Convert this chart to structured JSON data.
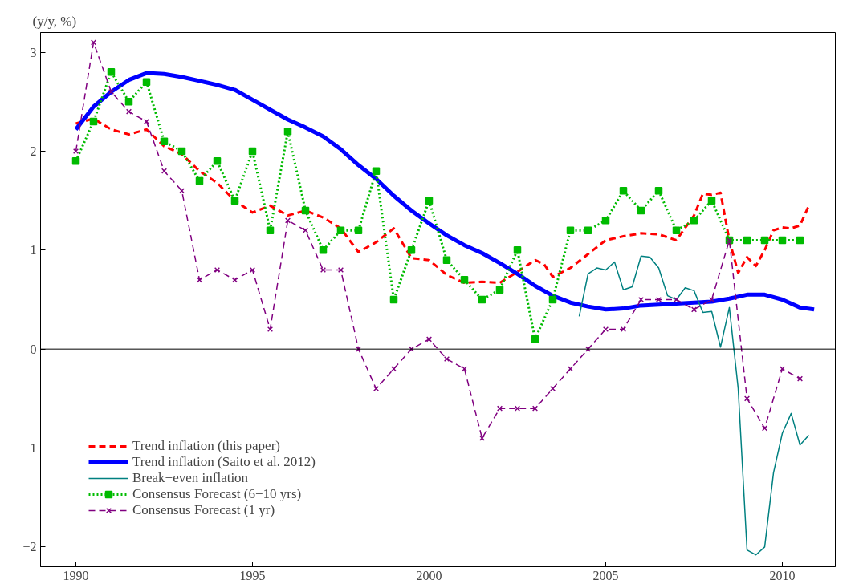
{
  "chart_data": {
    "type": "line",
    "ylabel": "(y/y, %)",
    "xlim": [
      1989,
      2011.5
    ],
    "ylim": [
      -2.2,
      3.2
    ],
    "xticks": [
      1990,
      1995,
      2000,
      2005,
      2010
    ],
    "yticks": [
      -2,
      -1,
      0,
      1,
      2,
      3
    ],
    "grid": false,
    "legend": "bottom left",
    "ref_lines": [
      {
        "axis": "y",
        "value": 0,
        "color": "#000000"
      }
    ],
    "series": [
      {
        "name": "Trend inflation (this paper)",
        "color": "#ff0000",
        "line_style": "dashed",
        "marker": "none",
        "x": [
          1990,
          1990.5,
          1991,
          1991.5,
          1992,
          1992.5,
          1993,
          1993.5,
          1994,
          1994.5,
          1995,
          1995.5,
          1996,
          1996.5,
          1997,
          1997.5,
          1998,
          1998.5,
          1999,
          1999.5,
          2000,
          2000.5,
          2001,
          2001.5,
          2002,
          2002.5,
          2003,
          2003.25,
          2003.5,
          2004,
          2004.5,
          2005,
          2005.5,
          2006,
          2006.5,
          2007,
          2007.5,
          2007.75,
          2008,
          2008.25,
          2008.5,
          2008.75,
          2009,
          2009.25,
          2009.5,
          2009.75,
          2010,
          2010.25,
          2010.5,
          2010.75
        ],
        "values": [
          2.28,
          2.33,
          2.22,
          2.17,
          2.22,
          2.05,
          1.97,
          1.8,
          1.68,
          1.5,
          1.38,
          1.45,
          1.35,
          1.4,
          1.33,
          1.22,
          0.98,
          1.08,
          1.22,
          0.92,
          0.9,
          0.75,
          0.67,
          0.68,
          0.67,
          0.78,
          0.9,
          0.86,
          0.73,
          0.82,
          0.96,
          1.1,
          1.14,
          1.17,
          1.16,
          1.1,
          1.35,
          1.57,
          1.56,
          1.58,
          1.1,
          0.77,
          0.93,
          0.84,
          1.0,
          1.2,
          1.23,
          1.22,
          1.25,
          1.45
        ]
      },
      {
        "name": "Trend inflation (Saito et al. 2012)",
        "color": "#0000ff",
        "line_style": "solid",
        "marker": "none",
        "x": [
          1990,
          1990.5,
          1991,
          1991.5,
          1992,
          1992.5,
          1993,
          1993.5,
          1994,
          1994.5,
          1995,
          1995.5,
          1996,
          1996.5,
          1997,
          1997.5,
          1998,
          1998.5,
          1999,
          1999.5,
          2000,
          2000.5,
          2001,
          2001.5,
          2002,
          2002.5,
          2003,
          2003.5,
          2004,
          2004.5,
          2005,
          2005.5,
          2006,
          2006.5,
          2007,
          2007.5,
          2008,
          2008.5,
          2009,
          2009.5,
          2010,
          2010.5,
          2010.9
        ],
        "values": [
          2.22,
          2.45,
          2.6,
          2.72,
          2.79,
          2.78,
          2.75,
          2.71,
          2.67,
          2.62,
          2.52,
          2.42,
          2.32,
          2.24,
          2.15,
          2.02,
          1.86,
          1.72,
          1.55,
          1.4,
          1.27,
          1.15,
          1.05,
          0.97,
          0.87,
          0.76,
          0.64,
          0.54,
          0.47,
          0.43,
          0.4,
          0.41,
          0.44,
          0.45,
          0.46,
          0.47,
          0.48,
          0.51,
          0.55,
          0.55,
          0.5,
          0.42,
          0.4
        ]
      },
      {
        "name": "Break−even inflation",
        "color": "#008080",
        "line_style": "solid",
        "marker": "none",
        "x": [
          2004.25,
          2004.5,
          2004.75,
          2005,
          2005.25,
          2005.5,
          2005.75,
          2006,
          2006.25,
          2006.5,
          2006.75,
          2007,
          2007.25,
          2007.5,
          2007.75,
          2008,
          2008.25,
          2008.5,
          2008.75,
          2009,
          2009.25,
          2009.5,
          2009.75,
          2010,
          2010.25,
          2010.5,
          2010.75
        ],
        "values": [
          0.33,
          0.76,
          0.82,
          0.8,
          0.88,
          0.6,
          0.63,
          0.94,
          0.93,
          0.82,
          0.54,
          0.5,
          0.62,
          0.59,
          0.37,
          0.38,
          0.02,
          0.42,
          -0.4,
          -2.03,
          -2.08,
          -2.0,
          -1.25,
          -0.85,
          -0.65,
          -0.97,
          -0.87
        ]
      },
      {
        "name": "Consensus Forecast (6−10 yrs)",
        "color": "#00bb00",
        "line_style": "dotted",
        "marker": "square",
        "x": [
          1990,
          1990.5,
          1991,
          1991.5,
          1992,
          1992.5,
          1993,
          1993.5,
          1994,
          1994.5,
          1995,
          1995.5,
          1996,
          1996.5,
          1997,
          1997.5,
          1998,
          1998.5,
          1999,
          1999.5,
          2000,
          2000.5,
          2001,
          2001.5,
          2002,
          2002.5,
          2003,
          2003.5,
          2004,
          2004.5,
          2005,
          2005.5,
          2006,
          2006.5,
          2007,
          2007.5,
          2008,
          2008.5,
          2009,
          2009.5,
          2010,
          2010.5
        ],
        "values": [
          1.9,
          2.3,
          2.8,
          2.5,
          2.7,
          2.1,
          2.0,
          1.7,
          1.9,
          1.5,
          2.0,
          1.2,
          2.2,
          1.4,
          1.0,
          1.2,
          1.2,
          1.8,
          0.5,
          1.0,
          1.5,
          0.9,
          0.7,
          0.5,
          0.6,
          1.0,
          0.1,
          0.5,
          1.2,
          1.2,
          1.3,
          1.6,
          1.4,
          1.6,
          1.2,
          1.3,
          1.5,
          1.1,
          1.1,
          1.1,
          1.1,
          1.1
        ]
      },
      {
        "name": "Consensus Forecast (1 yr)",
        "color": "#800080",
        "line_style": "dashed",
        "marker": "cross",
        "x": [
          1990,
          1990.5,
          1991,
          1991.5,
          1992,
          1992.5,
          1993,
          1993.5,
          1994,
          1994.5,
          1995,
          1995.5,
          1996,
          1996.5,
          1997,
          1997.5,
          1998,
          1998.5,
          1999,
          1999.5,
          2000,
          2000.5,
          2001,
          2001.5,
          2002,
          2002.5,
          2003,
          2003.5,
          2004,
          2004.5,
          2005,
          2005.5,
          2006,
          2006.5,
          2007,
          2007.5,
          2008,
          2008.5,
          2009,
          2009.5,
          2010,
          2010.5
        ],
        "values": [
          2.0,
          3.1,
          2.6,
          2.4,
          2.3,
          1.8,
          1.6,
          0.7,
          0.8,
          0.7,
          0.8,
          0.2,
          1.3,
          1.2,
          0.8,
          0.8,
          0.0,
          -0.4,
          -0.2,
          0.0,
          0.1,
          -0.1,
          -0.2,
          -0.9,
          -0.6,
          -0.6,
          -0.6,
          -0.4,
          -0.2,
          0.0,
          0.2,
          0.2,
          0.5,
          0.5,
          0.5,
          0.4,
          0.5,
          1.1,
          -0.5,
          -0.8,
          -0.2,
          -0.3
        ]
      }
    ]
  }
}
